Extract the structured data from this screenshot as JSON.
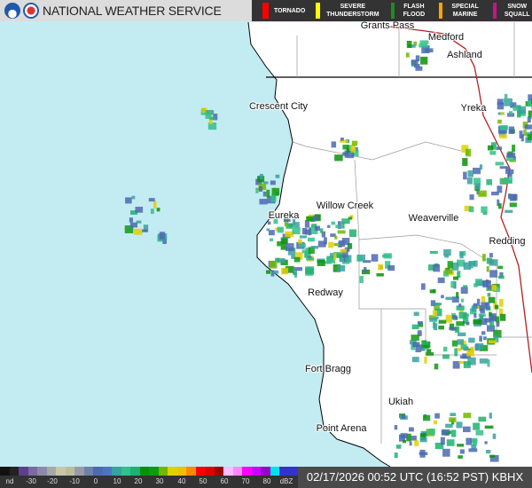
{
  "header": {
    "title": "NATIONAL WEATHER SERVICE",
    "logos": [
      "noaa-logo",
      "nws-logo"
    ]
  },
  "warnings": [
    {
      "label": "TORNADO",
      "color": "#ff0000"
    },
    {
      "label": "SEVERE THUNDERSTORM",
      "color": "#ffff00"
    },
    {
      "label": "FLASH FLOOD",
      "color": "#228b22"
    },
    {
      "label": "SPECIAL MARINE",
      "color": "#ffa500"
    },
    {
      "label": "SNOW SQUALL",
      "color": "#c71585"
    }
  ],
  "cities": [
    {
      "name": "Grants Pass"
    },
    {
      "name": "Medford"
    },
    {
      "name": "Ashland"
    },
    {
      "name": "Crescent City"
    },
    {
      "name": "Yreka"
    },
    {
      "name": "Eureka"
    },
    {
      "name": "Willow Creek"
    },
    {
      "name": "Weaverville"
    },
    {
      "name": "Redding"
    },
    {
      "name": "Redway"
    },
    {
      "name": "Fort Bragg"
    },
    {
      "name": "Ukiah"
    },
    {
      "name": "Point Arena"
    }
  ],
  "colors": {
    "ocean": "#c3ecf2",
    "land": "#ffffff",
    "coast": "#000000",
    "interstate": "#b22222",
    "state_line": "#000000",
    "county_line": "#999999"
  },
  "legend": {
    "colors": [
      "#111111",
      "#222222",
      "#5e3f8f",
      "#7a6aa0",
      "#8d89a8",
      "#a8a8a8",
      "#c8c8a8",
      "#bdbd9d",
      "#9a9aa6",
      "#6d82a8",
      "#4b6ab0",
      "#4c74c0",
      "#3aa0a0",
      "#33c08a",
      "#20b070",
      "#0b8f0b",
      "#109a10",
      "#70b800",
      "#e0d000",
      "#f0c000",
      "#ff8800",
      "#ff0000",
      "#e00000",
      "#a00000",
      "#ffbbff",
      "#ff88ff",
      "#ff00ff",
      "#cc00ff",
      "#9900cc",
      "#00e0f0",
      "#3333cc",
      "#3333cc"
    ],
    "ticks": [
      "nd",
      "-30",
      "-20",
      "-10",
      "0",
      "10",
      "20",
      "30",
      "40",
      "50",
      "60",
      "70",
      "80",
      "dBZ"
    ]
  },
  "timestamp": "02/17/2026 00:52 UTC (16:52 PST) KBHX"
}
